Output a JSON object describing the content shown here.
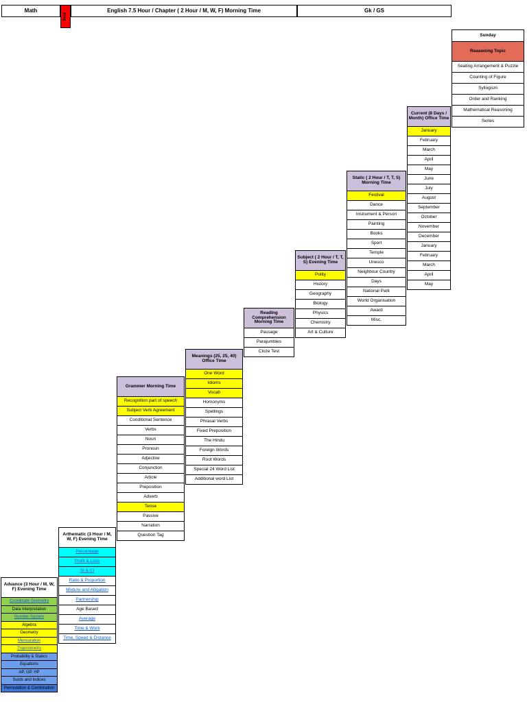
{
  "headers": {
    "math": "Math",
    "english": "English 7.5 Hour / Chapter ( 2 Hour / M, W, F) Morning Time",
    "gk_gs": "Gk / GS",
    "test": "Test"
  },
  "colors": {
    "yellow": "#ffff00",
    "green": "#92d050",
    "cyan": "#00ffff",
    "blue": "#6d9eeb",
    "blue_dark": "#3c78d8",
    "lavender": "#ccc0da",
    "salmon": "#e26b5a",
    "red": "#fe0000",
    "white": "#ffffff"
  },
  "sections": [
    {
      "id": "sunday",
      "group": "Sunday",
      "label": "Reasoning Topic",
      "label_bg": "salmon",
      "items": [
        {
          "text": "Seating Arrangement & Puzzle"
        },
        {
          "text": "Counting of Figure"
        },
        {
          "text": "Syllogism"
        },
        {
          "text": "Order and Ranking"
        },
        {
          "text": "Mathematical Reasoning"
        },
        {
          "text": "Series"
        }
      ]
    },
    {
      "id": "current",
      "label": "Current (8 Days / Month) Office Time",
      "label_bg": "lavender",
      "items": [
        {
          "text": "January",
          "bg": "yellow"
        },
        {
          "text": "February"
        },
        {
          "text": "March"
        },
        {
          "text": "April"
        },
        {
          "text": "May"
        },
        {
          "text": "June"
        },
        {
          "text": "July"
        },
        {
          "text": "August"
        },
        {
          "text": "September"
        },
        {
          "text": "October"
        },
        {
          "text": "November"
        },
        {
          "text": "December"
        },
        {
          "text": "January"
        },
        {
          "text": "February"
        },
        {
          "text": "March"
        },
        {
          "text": "April"
        },
        {
          "text": "May"
        }
      ]
    },
    {
      "id": "static",
      "label": "Static ( 2 Hour / T, T, S) Morning Time",
      "label_bg": "lavender",
      "items": [
        {
          "text": "Festival",
          "bg": "yellow"
        },
        {
          "text": "Dance"
        },
        {
          "text": "Instrument & Person"
        },
        {
          "text": "Painting"
        },
        {
          "text": "Books"
        },
        {
          "text": "Sport"
        },
        {
          "text": "Temple"
        },
        {
          "text": "Unesco"
        },
        {
          "text": "Neighbour Country"
        },
        {
          "text": "Days"
        },
        {
          "text": "National Park"
        },
        {
          "text": "World Organisation"
        },
        {
          "text": "Award"
        },
        {
          "text": "Misc."
        }
      ]
    },
    {
      "id": "subject",
      "label": "Subject ( 2 Hour / T, T, S) Evening Time",
      "label_bg": "lavender",
      "items": [
        {
          "text": "Polity",
          "bg": "yellow"
        },
        {
          "text": "History"
        },
        {
          "text": "Geography"
        },
        {
          "text": "Biology"
        },
        {
          "text": "Physics"
        },
        {
          "text": "Chemistry"
        },
        {
          "text": "Art & Culture"
        }
      ]
    },
    {
      "id": "reading",
      "label": "Reading Comprehension Morning Time",
      "label_bg": "lavender",
      "items": [
        {
          "text": "Passage"
        },
        {
          "text": "Parajumbles"
        },
        {
          "text": "Cloze Test"
        }
      ]
    },
    {
      "id": "meanings",
      "label": "Meanings (25, 25, 40) Office Time",
      "label_bg": "lavender",
      "items": [
        {
          "text": "One Word",
          "bg": "yellow"
        },
        {
          "text": "Idioms",
          "bg": "yellow"
        },
        {
          "text": "Vocab",
          "bg": "yellow"
        },
        {
          "text": "Homonyms"
        },
        {
          "text": "Spellings"
        },
        {
          "text": "Phrasal Verbs"
        },
        {
          "text": "Fixed Preposition"
        },
        {
          "text": "The Hindu"
        },
        {
          "text": "Foreign Words"
        },
        {
          "text": "Root Words"
        },
        {
          "text": "Special 24 Word List"
        },
        {
          "text": "Additional word List"
        }
      ]
    },
    {
      "id": "grammar",
      "label": "Grammer Morning Time",
      "label_bg": "lavender",
      "items": [
        {
          "text": "Recognition part of speech",
          "bg": "yellow"
        },
        {
          "text": "Subject Verb Agreement",
          "bg": "yellow"
        },
        {
          "text": "Conditional Sentence"
        },
        {
          "text": "Verbs"
        },
        {
          "text": "Noun"
        },
        {
          "text": "Pronoun"
        },
        {
          "text": "Adjective"
        },
        {
          "text": "Conjunction"
        },
        {
          "text": "Article"
        },
        {
          "text": "Preposition"
        },
        {
          "text": "Adverb"
        },
        {
          "text": "Tense",
          "bg": "yellow"
        },
        {
          "text": "Passive"
        },
        {
          "text": "Narration"
        },
        {
          "text": "Question Tag"
        }
      ]
    },
    {
      "id": "arithmetic",
      "label": "Arthematic (3 Hour / M, W, F) Evening Time",
      "label_bg": "white",
      "items": [
        {
          "text": "Percentage",
          "bg": "cyan",
          "link": true
        },
        {
          "text": "Profit & Loss",
          "bg": "cyan",
          "link": true
        },
        {
          "text": "SI & CI",
          "bg": "cyan",
          "link": true
        },
        {
          "text": "Ratio & Proportion",
          "link": true
        },
        {
          "text": "Mixture and Alligation",
          "link": true
        },
        {
          "text": "Partnership",
          "link": true
        },
        {
          "text": "Age Based"
        },
        {
          "text": "Average",
          "link": true
        },
        {
          "text": "Time & Work",
          "link": true
        },
        {
          "text": "Time, Speed & Distance",
          "link": true
        }
      ]
    },
    {
      "id": "advance",
      "label": "Advance (3 Hour / M, W, F) Evening Time",
      "label_bg": "white",
      "items": [
        {
          "text": "Coordinate Geometry",
          "bg": "green",
          "link": true
        },
        {
          "text": "Data Interpretation",
          "bg": "green"
        },
        {
          "text": "Number System",
          "bg": "green",
          "link": true
        },
        {
          "text": "Algebra",
          "bg": "yellow"
        },
        {
          "text": "Geometry",
          "bg": "yellow"
        },
        {
          "text": "Mensuration",
          "bg": "yellow",
          "link": true
        },
        {
          "text": "Trigonometry",
          "bg": "yellow",
          "link": true
        },
        {
          "text": "Probability & Statics",
          "bg": "blue"
        },
        {
          "text": "Equations",
          "bg": "blue"
        },
        {
          "text": "AP, GP, HP",
          "bg": "blue"
        },
        {
          "text": "Surds and Indices",
          "bg": "blue"
        },
        {
          "text": "Permutation & Combination",
          "bg": "blue_dark"
        }
      ]
    }
  ]
}
